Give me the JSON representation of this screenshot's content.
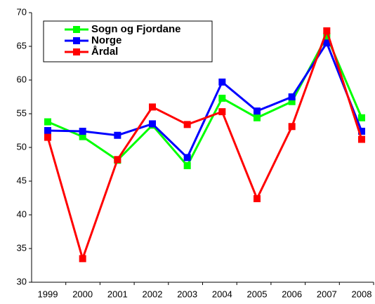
{
  "chart_data": {
    "type": "line",
    "categories": [
      "1999",
      "2000",
      "2001",
      "2002",
      "2003",
      "2004",
      "2005",
      "2006",
      "2007",
      "2008"
    ],
    "series": [
      {
        "name": "Sogn og Fjordane",
        "color": "#00ff00",
        "values": [
          53.8,
          51.6,
          48.1,
          53.3,
          47.3,
          57.3,
          54.4,
          56.8,
          66.5,
          54.4
        ]
      },
      {
        "name": "Norge",
        "color": "#0000ff",
        "values": [
          52.5,
          52.4,
          51.8,
          53.5,
          48.5,
          59.7,
          55.4,
          57.5,
          65.5,
          52.4
        ]
      },
      {
        "name": "Årdal",
        "color": "#ff0000",
        "values": [
          51.5,
          33.5,
          48.2,
          56.0,
          53.4,
          55.3,
          42.4,
          53.1,
          67.3,
          51.2
        ]
      }
    ],
    "ylim": [
      30,
      70
    ],
    "yticks": [
      30,
      35,
      40,
      45,
      50,
      55,
      60,
      65,
      70
    ],
    "legend": "upper left"
  }
}
